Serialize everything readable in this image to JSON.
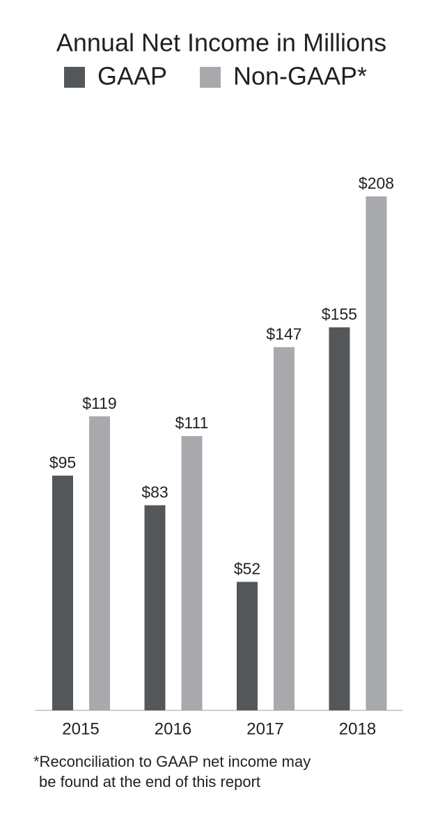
{
  "chart_data": {
    "type": "bar",
    "title": "Annual Net Income in Millions",
    "categories": [
      "2015",
      "2016",
      "2017",
      "2018"
    ],
    "series": [
      {
        "name": "GAAP",
        "color": "#54575a",
        "values": [
          95,
          83,
          52,
          155
        ],
        "value_labels": [
          "$95",
          "$83",
          "$52",
          "$155"
        ]
      },
      {
        "name": "Non-GAAP*",
        "color": "#a7a9ac",
        "values": [
          119,
          111,
          147,
          208
        ],
        "value_labels": [
          "$119",
          "$111",
          "$147",
          "$208"
        ]
      }
    ],
    "footnote": [
      "*Reconciliation to GAAP net income may",
      "be found at the end of this report"
    ]
  }
}
